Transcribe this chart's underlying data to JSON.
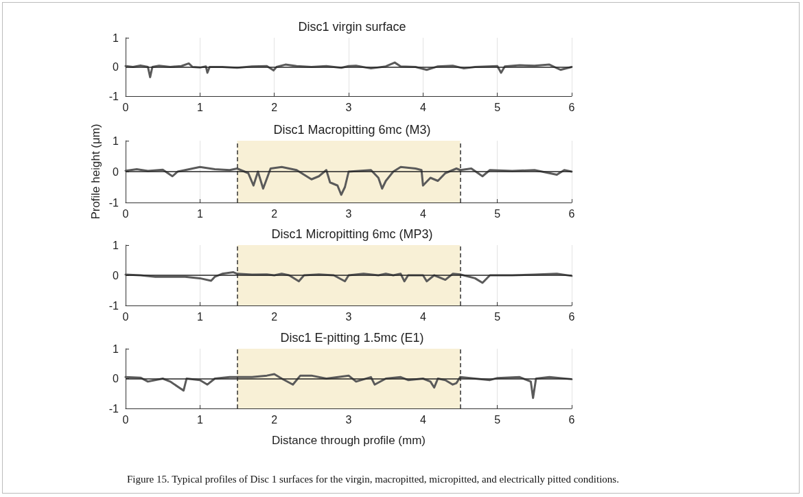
{
  "chart_data": [
    {
      "type": "line",
      "title": "Disc1 virgin surface",
      "xlim": [
        0,
        6
      ],
      "xticks": [
        0,
        1,
        2,
        3,
        4,
        5,
        6
      ],
      "ylim": [
        -1,
        1
      ],
      "yticks": [
        -1,
        0,
        1
      ],
      "grid": "x",
      "marker": "none",
      "line_style": "solid",
      "ref_lines": [
        {
          "axis": "y",
          "value": 0,
          "color": "#222222",
          "line_style": "solid"
        }
      ],
      "series": [
        {
          "color": "#5a5a5a",
          "x": [
            0,
            0.1,
            0.2,
            0.3,
            0.33,
            0.36,
            0.45,
            0.6,
            0.75,
            0.85,
            0.9,
            1.0,
            1.08,
            1.1,
            1.13,
            1.3,
            1.5,
            1.7,
            1.9,
            1.99,
            2.03,
            2.15,
            2.3,
            2.5,
            2.7,
            2.9,
            3.0,
            3.1,
            3.3,
            3.5,
            3.62,
            3.7,
            3.9,
            4.05,
            4.2,
            4.4,
            4.55,
            4.7,
            5.0,
            5.05,
            5.1,
            5.3,
            5.5,
            5.7,
            5.85,
            6.0
          ],
          "values": [
            0.03,
            0.0,
            0.05,
            0.0,
            -0.35,
            0.0,
            0.04,
            0.0,
            0.03,
            0.12,
            0.0,
            -0.02,
            0.02,
            -0.2,
            0.0,
            0.0,
            -0.03,
            0.02,
            0.03,
            -0.12,
            0.0,
            0.08,
            0.03,
            0.0,
            0.03,
            -0.03,
            0.03,
            0.04,
            -0.05,
            0.02,
            0.15,
            0.02,
            0.0,
            -0.1,
            0.02,
            0.04,
            -0.05,
            0.0,
            0.03,
            -0.2,
            0.02,
            0.06,
            0.04,
            0.08,
            -0.1,
            0.0
          ]
        }
      ]
    },
    {
      "type": "line",
      "title": "Disc1 Macropitting 6mc (M3)",
      "ylabel": "Profile height (μm)",
      "xlim": [
        0,
        6
      ],
      "xticks": [
        0,
        1,
        2,
        3,
        4,
        5,
        6
      ],
      "ylim": [
        -1,
        1
      ],
      "yticks": [
        -1,
        0,
        1
      ],
      "grid": "x",
      "marker": "none",
      "line_style": "solid",
      "bands": [
        {
          "axis": "x",
          "from": 1.5,
          "to": 4.5,
          "color": "#f8f0d6"
        }
      ],
      "ref_lines": [
        {
          "axis": "x",
          "value": 1.5,
          "color": "#333333",
          "line_style": "dashed"
        },
        {
          "axis": "x",
          "value": 4.5,
          "color": "#333333",
          "line_style": "dashed"
        },
        {
          "axis": "y",
          "value": 0,
          "color": "#222222",
          "line_style": "solid"
        }
      ],
      "series": [
        {
          "color": "#5a5a5a",
          "x": [
            0,
            0.15,
            0.3,
            0.5,
            0.63,
            0.7,
            0.9,
            1.0,
            1.2,
            1.4,
            1.5,
            1.65,
            1.72,
            1.78,
            1.85,
            1.95,
            2.1,
            2.3,
            2.4,
            2.5,
            2.6,
            2.7,
            2.75,
            2.85,
            2.9,
            2.95,
            3.0,
            3.3,
            3.4,
            3.45,
            3.5,
            3.6,
            3.7,
            3.9,
            3.98,
            4.0,
            4.1,
            4.2,
            4.3,
            4.45,
            4.5,
            4.65,
            4.8,
            4.9,
            5.2,
            5.5,
            5.8,
            5.9,
            6.0
          ],
          "values": [
            0.03,
            0.08,
            0.02,
            0.06,
            -0.15,
            0.0,
            0.1,
            0.15,
            0.08,
            0.05,
            0.1,
            -0.05,
            -0.45,
            0.0,
            -0.55,
            0.1,
            0.15,
            0.05,
            -0.1,
            -0.25,
            -0.15,
            0.05,
            -0.35,
            -0.45,
            -0.75,
            -0.5,
            0.0,
            0.05,
            -0.2,
            -0.55,
            -0.3,
            0.0,
            0.15,
            0.1,
            0.05,
            -0.45,
            -0.2,
            -0.3,
            -0.05,
            0.1,
            0.05,
            0.1,
            -0.15,
            0.05,
            0.02,
            0.05,
            -0.1,
            0.05,
            0.0
          ]
        }
      ]
    },
    {
      "type": "line",
      "title": "Disc1 Micropitting 6mc (MP3)",
      "xlim": [
        0,
        6
      ],
      "xticks": [
        0,
        1,
        2,
        3,
        4,
        5,
        6
      ],
      "ylim": [
        -1,
        1
      ],
      "yticks": [
        -1,
        0,
        1
      ],
      "grid": "x",
      "marker": "none",
      "line_style": "solid",
      "bands": [
        {
          "axis": "x",
          "from": 1.5,
          "to": 4.5,
          "color": "#f8f0d6"
        }
      ],
      "ref_lines": [
        {
          "axis": "x",
          "value": 1.5,
          "color": "#333333",
          "line_style": "dashed"
        },
        {
          "axis": "x",
          "value": 4.5,
          "color": "#333333",
          "line_style": "dashed"
        },
        {
          "axis": "y",
          "value": 0,
          "color": "#222222",
          "line_style": "solid"
        }
      ],
      "series": [
        {
          "color": "#5a5a5a",
          "x": [
            0,
            0.2,
            0.4,
            0.6,
            0.8,
            1.0,
            1.15,
            1.2,
            1.3,
            1.45,
            1.5,
            1.7,
            1.9,
            2.0,
            2.1,
            2.2,
            2.33,
            2.4,
            2.6,
            2.8,
            2.95,
            3.0,
            3.2,
            3.4,
            3.5,
            3.6,
            3.7,
            3.75,
            3.8,
            4.0,
            4.05,
            4.15,
            4.3,
            4.4,
            4.5,
            4.7,
            4.8,
            4.9,
            5.2,
            5.5,
            5.8,
            6.0
          ],
          "values": [
            0.02,
            0.0,
            -0.05,
            -0.05,
            -0.05,
            -0.1,
            -0.18,
            -0.05,
            0.05,
            0.1,
            0.05,
            0.02,
            0.03,
            0.0,
            0.05,
            0.0,
            -0.2,
            0.0,
            0.03,
            0.0,
            -0.2,
            0.0,
            0.05,
            0.0,
            0.05,
            0.0,
            0.05,
            -0.2,
            0.0,
            0.0,
            -0.2,
            0.0,
            -0.15,
            0.05,
            0.03,
            -0.1,
            -0.25,
            0.0,
            0.0,
            0.02,
            0.05,
            -0.02
          ]
        }
      ]
    },
    {
      "type": "line",
      "title": "Disc1 E-pitting 1.5mc (E1)",
      "xlabel": "Distance through profile (mm)",
      "xlim": [
        0,
        6
      ],
      "xticks": [
        0,
        1,
        2,
        3,
        4,
        5,
        6
      ],
      "ylim": [
        -1,
        1
      ],
      "yticks": [
        -1,
        0,
        1
      ],
      "grid": "x",
      "marker": "none",
      "line_style": "solid",
      "annotations": [
        "Figure 15. Typical profiles of Disc 1 surfaces for the virgin, macropitted, micropitted, and electrically pitted conditions."
      ],
      "bands": [
        {
          "axis": "x",
          "from": 1.5,
          "to": 4.5,
          "color": "#f8f0d6"
        }
      ],
      "ref_lines": [
        {
          "axis": "x",
          "value": 1.5,
          "color": "#333333",
          "line_style": "dashed"
        },
        {
          "axis": "x",
          "value": 4.5,
          "color": "#333333",
          "line_style": "dashed"
        },
        {
          "axis": "y",
          "value": 0,
          "color": "#222222",
          "line_style": "solid"
        }
      ],
      "series": [
        {
          "color": "#5a5a5a",
          "x": [
            0,
            0.2,
            0.3,
            0.5,
            0.6,
            0.78,
            0.82,
            1.0,
            1.1,
            1.2,
            1.4,
            1.5,
            1.7,
            1.9,
            2.0,
            2.1,
            2.25,
            2.35,
            2.5,
            2.7,
            3.0,
            3.1,
            3.3,
            3.35,
            3.5,
            3.7,
            3.8,
            4.0,
            4.1,
            4.15,
            4.2,
            4.3,
            4.4,
            4.45,
            4.5,
            4.7,
            4.9,
            5.0,
            5.3,
            5.45,
            5.48,
            5.52,
            5.7,
            6.0
          ],
          "values": [
            0.05,
            0.03,
            -0.1,
            0.0,
            -0.1,
            -0.4,
            0.0,
            -0.05,
            -0.2,
            0.0,
            0.05,
            0.05,
            0.05,
            0.1,
            0.15,
            0.0,
            -0.2,
            0.1,
            0.1,
            0.0,
            0.1,
            -0.1,
            0.05,
            -0.2,
            0.0,
            0.05,
            -0.05,
            0.0,
            -0.1,
            -0.3,
            0.0,
            -0.05,
            -0.2,
            -0.15,
            0.05,
            0.0,
            -0.05,
            0.02,
            0.05,
            -0.1,
            -0.65,
            0.0,
            0.05,
            -0.02
          ]
        }
      ]
    }
  ]
}
